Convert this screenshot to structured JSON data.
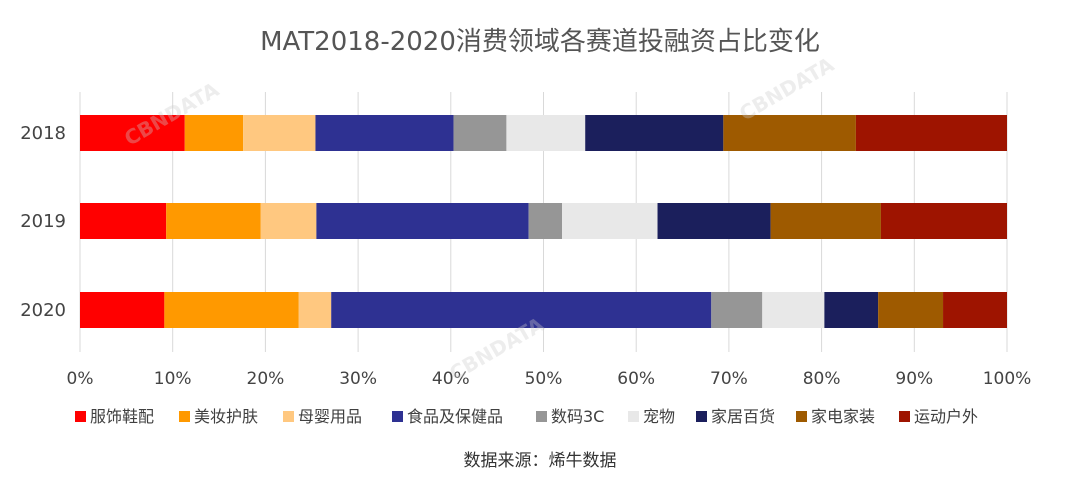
{
  "chart_data": {
    "type": "bar",
    "orientation": "horizontal",
    "stacked": true,
    "title": "MAT2018-2020消费领域各赛道投融资占比变化",
    "categories": [
      "2018",
      "2019",
      "2020"
    ],
    "xlim": [
      0,
      100
    ],
    "x_ticks": [
      "0%",
      "10%",
      "20%",
      "30%",
      "40%",
      "50%",
      "60%",
      "70%",
      "80%",
      "90%",
      "100%"
    ],
    "grid": true,
    "legend_position": "bottom",
    "series": [
      {
        "name": "服饰鞋配",
        "color": "#FF0000",
        "values": [
          11.3,
          9.3,
          9.1
        ]
      },
      {
        "name": "美妆护肤",
        "color": "#FF9900",
        "values": [
          6.3,
          10.2,
          14.5
        ]
      },
      {
        "name": "母婴用品",
        "color": "#FFC880",
        "values": [
          7.8,
          6.0,
          3.5
        ]
      },
      {
        "name": "食品及保健品",
        "color": "#2E3192",
        "values": [
          14.9,
          22.9,
          41.0
        ]
      },
      {
        "name": "数码3C",
        "color": "#969696",
        "values": [
          5.7,
          3.6,
          5.5
        ]
      },
      {
        "name": "宠物",
        "color": "#E8E8E8",
        "values": [
          8.5,
          10.3,
          6.7
        ]
      },
      {
        "name": "家居百货",
        "color": "#1B1F5C",
        "values": [
          14.9,
          12.2,
          5.8
        ]
      },
      {
        "name": "家电家装",
        "color": "#9E5A00",
        "values": [
          14.3,
          11.9,
          7.0
        ]
      },
      {
        "name": "运动户外",
        "color": "#9E1400",
        "values": [
          16.3,
          13.6,
          6.9
        ]
      }
    ],
    "source": "数据来源：烯牛数据"
  },
  "watermark": "CBNDATA"
}
